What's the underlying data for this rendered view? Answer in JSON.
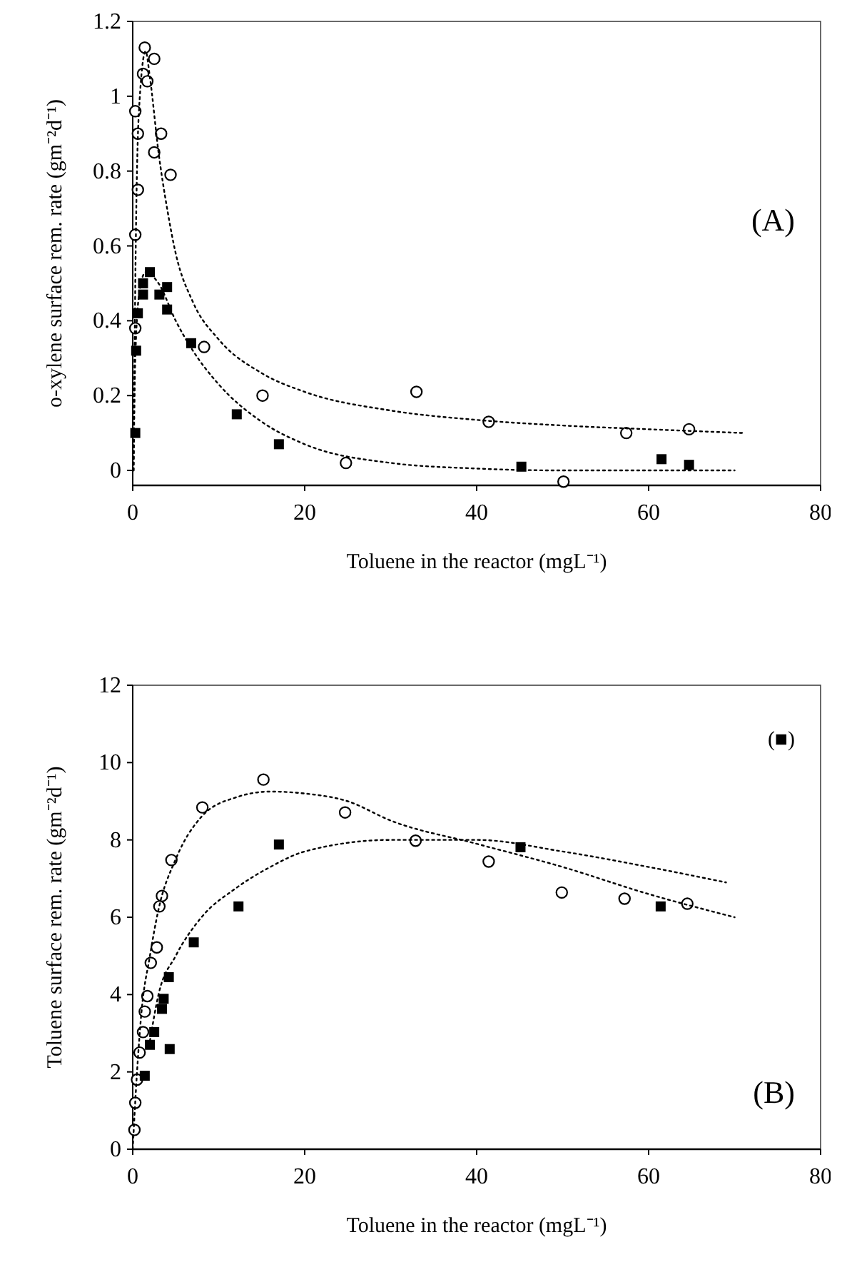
{
  "chart_data": [
    {
      "type": "scatter",
      "xlabel": "Toluene in the reactor (mgL⁻¹)",
      "ylabel": "o-xylene surface rem. rate (gm⁻²d⁻¹)",
      "annotations": [
        "(A)"
      ],
      "xlim": [
        0,
        80
      ],
      "xticks": [
        0,
        20,
        40,
        60,
        80
      ],
      "ylim": [
        -0.04,
        1.2
      ],
      "yticks": [
        0,
        0.2,
        0.4,
        0.6,
        0.8,
        1,
        1.2
      ],
      "grid": false,
      "series": [
        {
          "marker": "circle",
          "color": "#000000",
          "x": [
            1.4,
            2.5,
            1.2,
            1.7,
            0.3,
            0.6,
            3.3,
            2.5,
            4.4,
            0.6,
            0.3,
            0.3,
            8.3,
            15.1,
            33,
            41.4,
            57.4,
            64.7,
            24.8,
            50.1
          ],
          "values": [
            1.13,
            1.1,
            1.06,
            1.04,
            0.96,
            0.9,
            0.9,
            0.85,
            0.79,
            0.75,
            0.63,
            0.38,
            0.33,
            0.2,
            0.21,
            0.13,
            0.1,
            0.11,
            0.02,
            -0.03
          ]
        },
        {
          "marker": "square",
          "color": "#000000",
          "x": [
            0.3,
            0.4,
            0.6,
            1.2,
            1.2,
            2.0,
            3.1,
            4.0,
            4.0,
            6.8,
            12.1,
            17,
            45.2,
            61.5,
            64.7
          ],
          "values": [
            0.1,
            0.32,
            0.42,
            0.47,
            0.5,
            0.53,
            0.47,
            0.49,
            0.43,
            0.34,
            0.15,
            0.07,
            0.01,
            0.03,
            0.015
          ]
        },
        {
          "type": "line",
          "line_style": "dotted",
          "color": "#000000",
          "x": [
            0.1,
            0.3,
            0.7,
            1.5,
            2,
            3,
            4,
            5,
            7,
            10,
            15,
            20,
            30,
            40,
            50,
            60,
            71
          ],
          "values": [
            0,
            0.5,
            0.95,
            1.12,
            1.05,
            0.85,
            0.7,
            0.58,
            0.45,
            0.35,
            0.26,
            0.21,
            0.16,
            0.135,
            0.12,
            0.11,
            0.1
          ]
        },
        {
          "type": "line",
          "line_style": "dotted",
          "color": "#000000",
          "x": [
            0.1,
            0.3,
            0.8,
            1.5,
            3,
            5,
            7,
            10,
            15,
            20,
            30,
            40,
            50,
            70
          ],
          "values": [
            0,
            0.3,
            0.48,
            0.53,
            0.5,
            0.4,
            0.32,
            0.23,
            0.13,
            0.07,
            0.02,
            0.005,
            0,
            0
          ]
        }
      ]
    },
    {
      "type": "scatter",
      "xlabel": "Toluene in the reactor (mgL⁻¹)",
      "ylabel": "Toluene surface rem. rate (gm⁻²d⁻¹)",
      "annotations": [
        "(■)",
        "(B)"
      ],
      "xlim": [
        0,
        80
      ],
      "xticks": [
        0,
        20,
        40,
        60,
        80
      ],
      "ylim": [
        0,
        12
      ],
      "yticks": [
        0,
        2,
        4,
        6,
        8,
        10,
        12
      ],
      "grid": false,
      "series": [
        {
          "marker": "circle",
          "color": "#000000",
          "x": [
            15.2,
            8.1,
            4.5,
            3.4,
            3.1,
            2.8,
            2.1,
            1.7,
            1.4,
            1.2,
            0.8,
            0.5,
            0.3,
            0.2,
            24.7,
            32.9,
            41.4,
            49.9,
            57.2,
            64.5
          ],
          "values": [
            9.56,
            8.84,
            7.48,
            6.55,
            6.28,
            5.22,
            4.82,
            3.96,
            3.56,
            3.03,
            2.5,
            1.8,
            1.2,
            0.5,
            8.71,
            7.98,
            7.44,
            6.64,
            6.48,
            6.35
          ]
        },
        {
          "marker": "square",
          "color": "#000000",
          "x": [
            17,
            12.3,
            7.1,
            4.2,
            3.6,
            3.4,
            2.5,
            2.0,
            4.3,
            1.4,
            45.1,
            61.4
          ],
          "values": [
            7.88,
            6.28,
            5.35,
            4.45,
            3.89,
            3.63,
            3.03,
            2.7,
            2.59,
            1.9,
            7.81,
            6.28
          ]
        },
        {
          "type": "line",
          "line_style": "dotted",
          "color": "#000000",
          "x": [
            0,
            0.5,
            1,
            2,
            3,
            5,
            8,
            12,
            16,
            20,
            25,
            30,
            40,
            50,
            60,
            70
          ],
          "values": [
            0,
            2,
            3.5,
            5,
            6.2,
            7.5,
            8.6,
            9.1,
            9.25,
            9.2,
            9.0,
            8.5,
            7.9,
            7.3,
            6.6,
            6.0
          ]
        },
        {
          "type": "line",
          "line_style": "dotted",
          "color": "#000000",
          "x": [
            2,
            3,
            5,
            8,
            12,
            16,
            20,
            30,
            40,
            50,
            60,
            69
          ],
          "values": [
            2.8,
            4.0,
            5.0,
            6.0,
            6.75,
            7.3,
            7.7,
            8.0,
            8.0,
            7.7,
            7.3,
            6.9
          ]
        }
      ]
    }
  ]
}
